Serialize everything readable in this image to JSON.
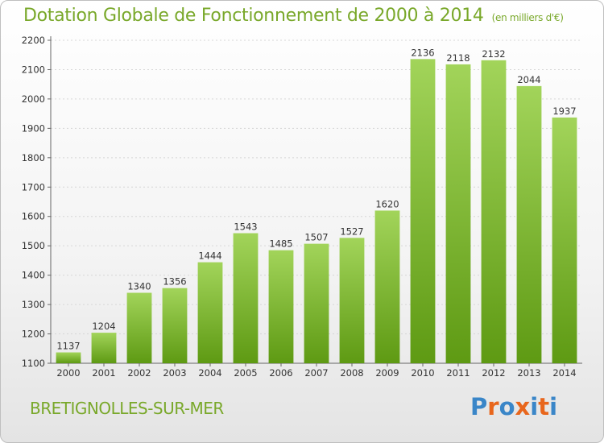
{
  "chart_data": {
    "type": "bar",
    "title": "Dotation Globale de Fonctionnement de 2000 à 2014",
    "subtitle": "(en milliers d'€)",
    "categories": [
      "2000",
      "2001",
      "2002",
      "2003",
      "2004",
      "2005",
      "2006",
      "2007",
      "2008",
      "2009",
      "2010",
      "2011",
      "2012",
      "2013",
      "2014"
    ],
    "values": [
      1137,
      1204,
      1340,
      1356,
      1444,
      1543,
      1485,
      1507,
      1527,
      1620,
      2136,
      2118,
      2132,
      2044,
      1937
    ],
    "ylim": [
      1100,
      2200
    ],
    "yticks": [
      1100,
      1200,
      1300,
      1400,
      1500,
      1600,
      1700,
      1800,
      1900,
      2000,
      2100,
      2200
    ],
    "xlabel": "",
    "ylabel": "",
    "grid": true,
    "colors": {
      "bar_top": "#a2d45a",
      "bar_bottom": "#5e9a13",
      "title": "#79a82a"
    }
  },
  "footer": {
    "commune": "BRETIGNOLLES-SUR-MER",
    "logo_letters": [
      "P",
      "r",
      "o",
      "x",
      "i",
      "t",
      "i"
    ],
    "logo_colors": [
      "#3a86c8",
      "#e8661c",
      "#3a86c8",
      "#e8661c",
      "#3a86c8",
      "#e8661c",
      "#3a86c8"
    ]
  }
}
